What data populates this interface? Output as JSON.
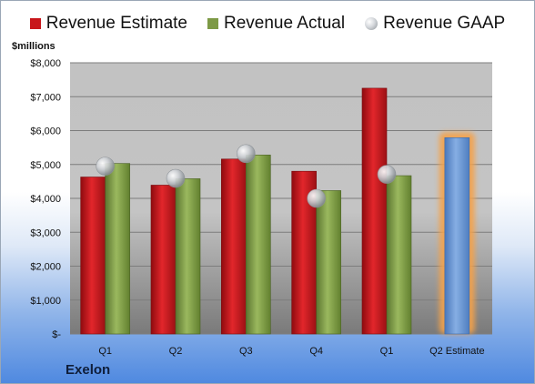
{
  "legend": {
    "estimate": "Revenue Estimate",
    "actual": "Revenue Actual",
    "gaap": "Revenue GAAP"
  },
  "unit_label": "$millions",
  "company": "Exelon",
  "colors": {
    "estimate": "#c8161b",
    "actual": "#7d9a45",
    "gaap": "#c0c4c8",
    "forecast": "#6b96d2",
    "forecast_glow": "#f5a24a"
  },
  "chart_data": {
    "type": "bar",
    "categories": [
      "Q1",
      "Q2",
      "Q3",
      "Q4",
      "Q1",
      "Q2 Estimate"
    ],
    "series": [
      {
        "name": "Revenue Estimate",
        "values": [
          4630,
          4390,
          5160,
          4800,
          7250,
          5790
        ]
      },
      {
        "name": "Revenue Actual",
        "values": [
          5030,
          4580,
          5280,
          4230,
          4670,
          null
        ]
      },
      {
        "name": "Revenue GAAP",
        "type": "scatter",
        "values": [
          4950,
          4590,
          5320,
          4000,
          4710,
          null
        ]
      }
    ],
    "ylim": [
      0,
      8000
    ],
    "yticks": [
      0,
      1000,
      2000,
      3000,
      4000,
      5000,
      6000,
      7000,
      8000
    ],
    "ytick_labels": [
      "$-",
      "$1,000",
      "$2,000",
      "$3,000",
      "$4,000",
      "$5,000",
      "$6,000",
      "$7,000",
      "$8,000"
    ],
    "ylabel": "$millions",
    "grid": true,
    "legend_position": "top"
  }
}
